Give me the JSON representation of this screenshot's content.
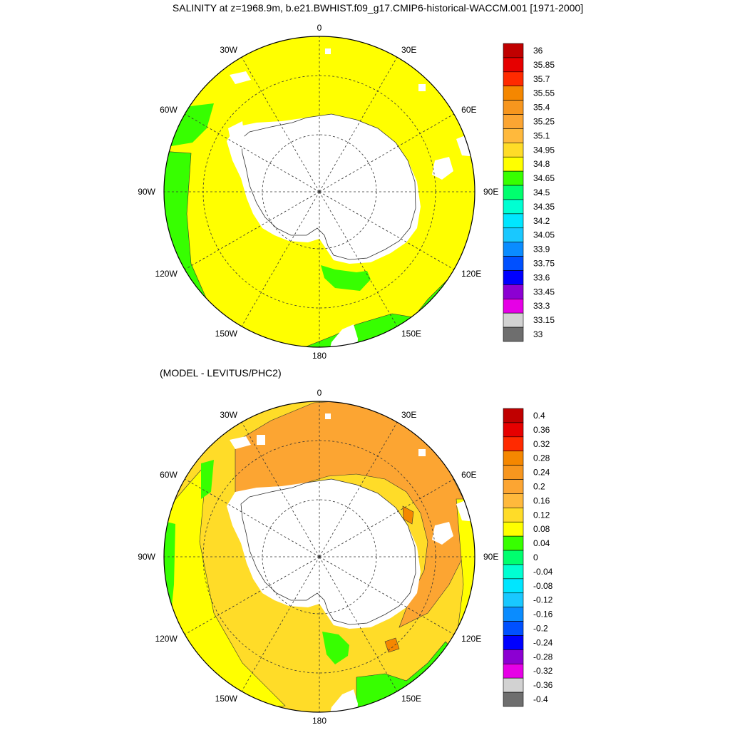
{
  "title": "SALINITY at z=1968.9m, b.e21.BWHIST.f09_g17.CMIP6-historical-WACCM.001 [1971-2000]",
  "subtitle": "(MODEL - LEVITUS/PHC2)",
  "lon_labels": [
    "0",
    "30E",
    "60E",
    "90E",
    "120E",
    "150E",
    "180",
    "150W",
    "120W",
    "90W",
    "60W",
    "30W"
  ],
  "colors": {
    "land": "#ffffff",
    "coast": "#333333",
    "grid": "#333333"
  },
  "chart_data": [
    {
      "type": "heatmap",
      "projection": "south-polar-stereographic",
      "title": "SALINITY at z=1968.9m, b.e21.BWHIST.f09_g17.CMIP6-historical-WACCM.001 [1971-2000]",
      "field": "salinity",
      "dominant_range": [
        34.8,
        34.95
      ],
      "coastal_band_range": [
        34.65,
        34.8
      ],
      "colorbar": {
        "levels": [
          "36",
          "35.85",
          "35.7",
          "35.55",
          "35.4",
          "35.25",
          "35.1",
          "34.95",
          "34.8",
          "34.65",
          "34.5",
          "34.35",
          "34.2",
          "34.05",
          "33.9",
          "33.75",
          "33.6",
          "33.45",
          "33.3",
          "33.15",
          "33"
        ],
        "colors": [
          "#c00000",
          "#e60000",
          "#ff2a00",
          "#f58700",
          "#f7961e",
          "#fca532",
          "#ffb93c",
          "#ffdc28",
          "#ffff00",
          "#37ff00",
          "#00ff6e",
          "#00ffd2",
          "#00e6ff",
          "#19c8ff",
          "#0a8cff",
          "#0050ff",
          "#0000ff",
          "#8c00d2",
          "#e600e6",
          "#d2d2d2",
          "#6e6e6e"
        ]
      }
    },
    {
      "type": "heatmap",
      "projection": "south-polar-stereographic",
      "title": "(MODEL - LEVITUS/PHC2)",
      "field": "salinity difference",
      "dominant_range": [
        0.12,
        0.24
      ],
      "colorbar": {
        "levels": [
          "0.4",
          "0.36",
          "0.32",
          "0.28",
          "0.24",
          "0.2",
          "0.16",
          "0.12",
          "0.08",
          "0.04",
          "0",
          "-0.04",
          "-0.08",
          "-0.12",
          "-0.16",
          "-0.2",
          "-0.24",
          "-0.28",
          "-0.32",
          "-0.36",
          "-0.4"
        ],
        "colors": [
          "#c00000",
          "#e60000",
          "#ff2a00",
          "#f58700",
          "#f7961e",
          "#fca532",
          "#ffb93c",
          "#ffdc28",
          "#ffff00",
          "#37ff00",
          "#00ff6e",
          "#00ffd2",
          "#00e6ff",
          "#19c8ff",
          "#0a8cff",
          "#0050ff",
          "#0000ff",
          "#8c00d2",
          "#e600e6",
          "#d2d2d2",
          "#6e6e6e"
        ]
      }
    }
  ]
}
